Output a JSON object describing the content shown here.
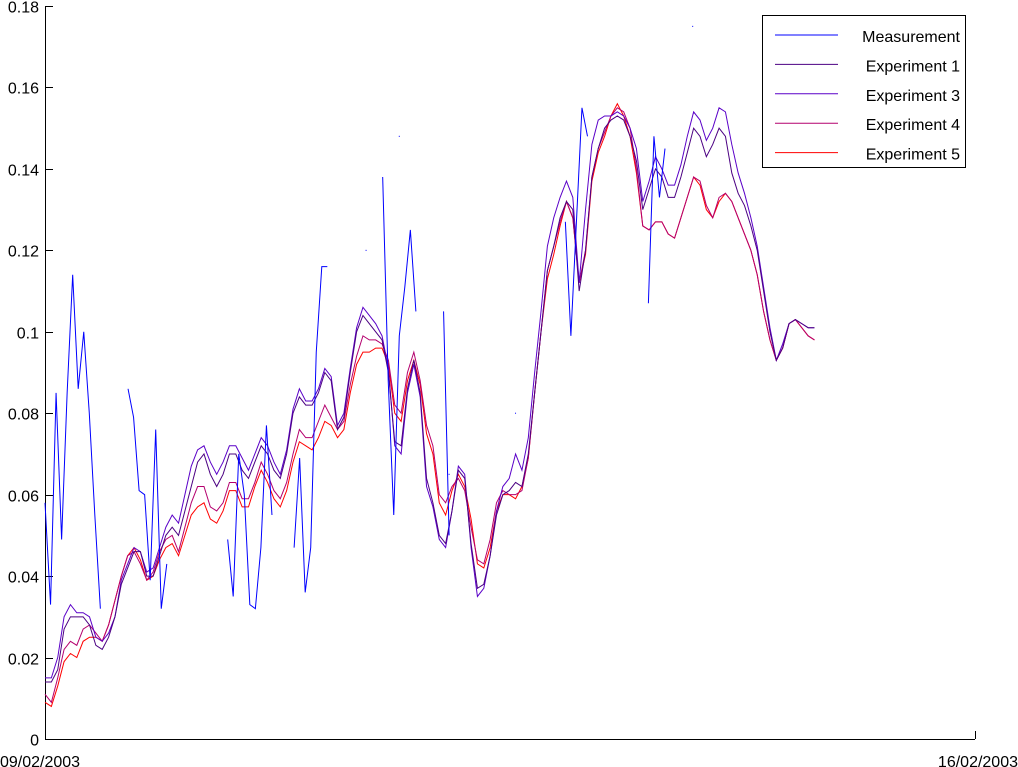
{
  "chart_data": {
    "type": "line",
    "title": "",
    "xlabel": "",
    "ylabel": "",
    "xlim": [
      "09/02/2003",
      "16/02/2003"
    ],
    "ylim": [
      0,
      0.18
    ],
    "y_ticks": [
      0,
      0.02,
      0.04,
      0.06,
      0.08,
      0.1,
      0.12,
      0.14,
      0.16,
      0.18
    ],
    "y_tick_labels": [
      "0",
      "0.02",
      "0.04",
      "0.06",
      "0.08",
      "0.1",
      "0.12",
      "0.14",
      "0.16",
      "0.18"
    ],
    "x_tick_labels": [
      "09/02/2003",
      "16/02/2003"
    ],
    "grid": false,
    "legend_position": "top-right",
    "series": [
      {
        "name": "Measurement",
        "color": "#0000ff",
        "points": [
          [
            "09/02/2003 00:00",
            0.058
          ],
          [
            "09/02/2003 01:00",
            0.033
          ],
          [
            "09/02/2003 02:00",
            0.085
          ],
          [
            "09/02/2003 03:00",
            0.049
          ],
          [
            "09/02/2003 04:00",
            0.085
          ],
          [
            "09/02/2003 05:00",
            0.114
          ],
          [
            "09/02/2003 06:00",
            0.086
          ],
          [
            "09/02/2003 07:00",
            0.1
          ],
          [
            "09/02/2003 08:00",
            0.08
          ],
          [
            "09/02/2003 09:00",
            0.055
          ],
          [
            "09/02/2003 10:00",
            0.032
          ],
          [
            "09/02/2003 11:00",
            null
          ],
          [
            "09/02/2003 12:00",
            null
          ],
          [
            "09/02/2003 13:00",
            null
          ],
          [
            "09/02/2003 14:00",
            null
          ],
          [
            "09/02/2003 15:00",
            0.086
          ],
          [
            "09/02/2003 16:00",
            0.079
          ],
          [
            "09/02/2003 17:00",
            0.061
          ],
          [
            "09/02/2003 18:00",
            0.06
          ],
          [
            "09/02/2003 19:00",
            0.039
          ],
          [
            "09/02/2003 20:00",
            0.076
          ],
          [
            "09/02/2003 21:00",
            0.032
          ],
          [
            "09/02/2003 22:00",
            0.043
          ],
          [
            "09/02/2003 23:00",
            null
          ],
          [
            "10/02/2003 00:00",
            null
          ],
          [
            "10/02/2003 01:00",
            null
          ],
          [
            "10/02/2003 02:00",
            null
          ],
          [
            "10/02/2003 03:00",
            null
          ],
          [
            "10/02/2003 04:00",
            null
          ],
          [
            "10/02/2003 05:00",
            null
          ],
          [
            "10/02/2003 06:00",
            null
          ],
          [
            "10/02/2003 07:00",
            null
          ],
          [
            "10/02/2003 08:00",
            null
          ],
          [
            "10/02/2003 09:00",
            0.049
          ],
          [
            "10/02/2003 10:00",
            0.035
          ],
          [
            "10/02/2003 11:00",
            0.07
          ],
          [
            "10/02/2003 12:00",
            0.06
          ],
          [
            "10/02/2003 13:00",
            0.033
          ],
          [
            "10/02/2003 14:00",
            0.032
          ],
          [
            "10/02/2003 15:00",
            0.047
          ],
          [
            "10/02/2003 16:00",
            0.077
          ],
          [
            "10/02/2003 17:00",
            0.055
          ],
          [
            "10/02/2003 18:00",
            null
          ],
          [
            "10/02/2003 19:00",
            null
          ],
          [
            "10/02/2003 20:00",
            null
          ],
          [
            "10/02/2003 21:00",
            0.047
          ],
          [
            "10/02/2003 22:00",
            0.069
          ],
          [
            "10/02/2003 23:00",
            0.036
          ],
          [
            "11/02/2003 00:00",
            0.047
          ],
          [
            "11/02/2003 01:00",
            0.095
          ],
          [
            "11/02/2003 02:00",
            0.116
          ],
          [
            "11/02/2003 03:00",
            0.116
          ],
          [
            "11/02/2003 04:00",
            null
          ],
          [
            "11/02/2003 05:00",
            null
          ],
          [
            "11/02/2003 06:00",
            null
          ],
          [
            "11/02/2003 07:00",
            null
          ],
          [
            "11/02/2003 08:00",
            null
          ],
          [
            "11/02/2003 09:00",
            null
          ],
          [
            "11/02/2003 10:00",
            null
          ],
          [
            "11/02/2003 11:00",
            null
          ],
          [
            "11/02/2003 12:00",
            null
          ],
          [
            "11/02/2003 13:00",
            0.138
          ],
          [
            "11/02/2003 14:00",
            0.088
          ],
          [
            "11/02/2003 15:00",
            0.055
          ],
          [
            "11/02/2003 16:00",
            0.099
          ],
          [
            "11/02/2003 17:00",
            0.111
          ],
          [
            "11/02/2003 18:00",
            0.125
          ],
          [
            "11/02/2003 19:00",
            0.105
          ],
          [
            "11/02/2003 20:00",
            null
          ],
          [
            "11/02/2003 21:00",
            null
          ],
          [
            "11/02/2003 22:00",
            null
          ],
          [
            "11/02/2003 23:00",
            null
          ],
          [
            "12/02/2003 00:00",
            0.105
          ],
          [
            "12/02/2003 01:00",
            0.05
          ],
          [
            "12/02/2003 02:00",
            null
          ],
          [
            "12/02/2003 03:00",
            null
          ],
          [
            "12/02/2003 04:00",
            null
          ],
          [
            "12/02/2003 05:00",
            null
          ],
          [
            "12/02/2003 06:00",
            null
          ],
          [
            "12/02/2003 07:00",
            null
          ],
          [
            "12/02/2003 08:00",
            null
          ],
          [
            "12/02/2003 09:00",
            null
          ],
          [
            "12/02/2003 10:00",
            null
          ],
          [
            "12/02/2003 11:00",
            null
          ],
          [
            "12/02/2003 12:00",
            null
          ],
          [
            "12/02/2003 13:00",
            null
          ],
          [
            "12/02/2003 14:00",
            null
          ],
          [
            "12/02/2003 15:00",
            null
          ],
          [
            "12/02/2003 16:00",
            null
          ],
          [
            "12/02/2003 17:00",
            null
          ],
          [
            "12/02/2003 18:00",
            null
          ],
          [
            "12/02/2003 19:00",
            null
          ],
          [
            "12/02/2003 20:00",
            null
          ],
          [
            "12/02/2003 21:00",
            null
          ],
          [
            "12/02/2003 22:00",
            0.127
          ],
          [
            "12/02/2003 23:00",
            0.099
          ],
          [
            "13/02/2003 00:00",
            0.127
          ],
          [
            "13/02/2003 01:00",
            0.155
          ],
          [
            "13/02/2003 02:00",
            0.148
          ],
          [
            "13/02/2003 03:00",
            null
          ],
          [
            "13/02/2003 04:00",
            null
          ],
          [
            "13/02/2003 05:00",
            null
          ],
          [
            "13/02/2003 06:00",
            null
          ],
          [
            "13/02/2003 07:00",
            null
          ],
          [
            "13/02/2003 08:00",
            null
          ],
          [
            "13/02/2003 09:00",
            null
          ],
          [
            "13/02/2003 10:00",
            null
          ],
          [
            "13/02/2003 11:00",
            null
          ],
          [
            "13/02/2003 12:00",
            null
          ],
          [
            "13/02/2003 13:00",
            0.107
          ],
          [
            "13/02/2003 14:00",
            0.148
          ],
          [
            "13/02/2003 15:00",
            0.133
          ],
          [
            "13/02/2003 16:00",
            0.145
          ]
        ]
      },
      {
        "name": "Experiment 1",
        "color": "#4b0082",
        "x_start": "09/02/2003 00:00",
        "x_end": "14/02/2003 19:00",
        "values": [
          0.014,
          0.014,
          0.017,
          0.027,
          0.03,
          0.03,
          0.03,
          0.028,
          0.023,
          0.022,
          0.025,
          0.03,
          0.038,
          0.042,
          0.046,
          0.046,
          0.04,
          0.04,
          0.045,
          0.05,
          0.052,
          0.05,
          0.056,
          0.062,
          0.068,
          0.07,
          0.065,
          0.062,
          0.065,
          0.07,
          0.07,
          0.066,
          0.064,
          0.068,
          0.072,
          0.07,
          0.066,
          0.064,
          0.07,
          0.08,
          0.084,
          0.082,
          0.082,
          0.085,
          0.09,
          0.088,
          0.076,
          0.079,
          0.09,
          0.1,
          0.104,
          0.102,
          0.1,
          0.098,
          0.09,
          0.073,
          0.072,
          0.086,
          0.093,
          0.085,
          0.064,
          0.058,
          0.05,
          0.048,
          0.056,
          0.066,
          0.064,
          0.048,
          0.037,
          0.038,
          0.045,
          0.055,
          0.06,
          0.061,
          0.063,
          0.062,
          0.07,
          0.085,
          0.1,
          0.115,
          0.121,
          0.128,
          0.132,
          0.13,
          0.11,
          0.12,
          0.138,
          0.145,
          0.15,
          0.152,
          0.153,
          0.152,
          0.148,
          0.142,
          0.13,
          0.135,
          0.14,
          0.138,
          0.133,
          0.133,
          0.138,
          0.144,
          0.15,
          0.148,
          0.143,
          0.146,
          0.15,
          0.148,
          0.139,
          0.134,
          0.131,
          0.126,
          0.12,
          0.11,
          0.1,
          0.093,
          0.096,
          0.102,
          0.103,
          0.102,
          0.101,
          0.101
        ]
      },
      {
        "name": "Experiment 3",
        "color": "#5a00c8",
        "x_start": "09/02/2003 00:00",
        "x_end": "14/02/2003 19:00",
        "values": [
          0.015,
          0.015,
          0.02,
          0.03,
          0.033,
          0.031,
          0.031,
          0.03,
          0.025,
          0.024,
          0.026,
          0.03,
          0.039,
          0.043,
          0.047,
          0.046,
          0.041,
          0.042,
          0.047,
          0.052,
          0.055,
          0.053,
          0.06,
          0.067,
          0.071,
          0.072,
          0.068,
          0.065,
          0.068,
          0.072,
          0.072,
          0.069,
          0.066,
          0.07,
          0.074,
          0.072,
          0.068,
          0.065,
          0.071,
          0.081,
          0.086,
          0.083,
          0.083,
          0.086,
          0.091,
          0.089,
          0.077,
          0.08,
          0.091,
          0.101,
          0.106,
          0.104,
          0.102,
          0.099,
          0.091,
          0.072,
          0.07,
          0.085,
          0.092,
          0.084,
          0.062,
          0.057,
          0.049,
          0.047,
          0.056,
          0.067,
          0.065,
          0.047,
          0.035,
          0.037,
          0.045,
          0.056,
          0.062,
          0.064,
          0.07,
          0.066,
          0.074,
          0.09,
          0.105,
          0.121,
          0.128,
          0.133,
          0.137,
          0.133,
          0.112,
          0.13,
          0.146,
          0.152,
          0.153,
          0.153,
          0.154,
          0.153,
          0.15,
          0.145,
          0.132,
          0.137,
          0.143,
          0.14,
          0.136,
          0.136,
          0.141,
          0.148,
          0.154,
          0.152,
          0.147,
          0.15,
          0.155,
          0.154,
          0.146,
          0.139,
          0.134,
          0.128,
          0.121,
          0.111,
          0.101,
          0.093,
          0.097,
          0.102,
          0.103,
          0.102,
          0.101,
          0.101
        ]
      },
      {
        "name": "Experiment 4",
        "color": "#b4006e",
        "x_start": "09/02/2003 00:00",
        "x_end": "14/02/2003 19:00",
        "values": [
          0.011,
          0.009,
          0.015,
          0.022,
          0.024,
          0.023,
          0.027,
          0.028,
          0.026,
          0.024,
          0.028,
          0.034,
          0.04,
          0.045,
          0.046,
          0.043,
          0.039,
          0.041,
          0.046,
          0.049,
          0.05,
          0.046,
          0.052,
          0.058,
          0.062,
          0.062,
          0.057,
          0.056,
          0.058,
          0.063,
          0.063,
          0.059,
          0.059,
          0.063,
          0.068,
          0.065,
          0.061,
          0.059,
          0.063,
          0.07,
          0.076,
          0.074,
          0.074,
          0.078,
          0.082,
          0.079,
          0.076,
          0.078,
          0.087,
          0.094,
          0.099,
          0.098,
          0.098,
          0.097,
          0.093,
          0.082,
          0.08,
          0.09,
          0.095,
          0.088,
          0.077,
          0.072,
          0.06,
          0.058,
          0.062,
          0.064,
          0.061,
          0.052,
          0.044,
          0.043,
          0.049,
          0.058,
          0.061,
          0.06,
          0.06,
          0.061,
          0.069,
          0.085,
          0.1,
          0.115,
          0.121,
          0.127,
          0.132,
          0.128,
          0.112,
          0.12,
          0.138,
          0.145,
          0.149,
          0.153,
          0.155,
          0.154,
          0.15,
          0.14,
          0.126,
          0.125,
          0.127,
          0.127,
          0.124,
          0.123,
          0.128,
          0.133,
          0.138,
          0.137,
          0.131,
          0.128,
          0.133,
          0.134,
          0.132,
          0.128,
          0.124,
          0.12,
          0.114,
          0.105,
          0.098,
          0.093,
          0.096,
          0.102,
          0.103,
          0.101,
          0.099,
          0.098
        ]
      },
      {
        "name": "Experiment 5",
        "color": "#ff0000",
        "x_start": "09/02/2003 00:00",
        "x_end": "14/02/2003 19:00",
        "values": [
          0.009,
          0.008,
          0.013,
          0.019,
          0.021,
          0.02,
          0.024,
          0.025,
          0.025,
          0.024,
          0.028,
          0.034,
          0.04,
          0.045,
          0.047,
          0.044,
          0.039,
          0.04,
          0.044,
          0.047,
          0.048,
          0.045,
          0.05,
          0.055,
          0.057,
          0.058,
          0.054,
          0.053,
          0.056,
          0.061,
          0.061,
          0.057,
          0.057,
          0.062,
          0.066,
          0.063,
          0.059,
          0.057,
          0.061,
          0.068,
          0.073,
          0.072,
          0.071,
          0.074,
          0.078,
          0.077,
          0.074,
          0.076,
          0.085,
          0.092,
          0.095,
          0.095,
          0.096,
          0.096,
          0.092,
          0.08,
          0.078,
          0.088,
          0.093,
          0.087,
          0.075,
          0.07,
          0.058,
          0.055,
          0.061,
          0.065,
          0.062,
          0.054,
          0.043,
          0.042,
          0.047,
          0.056,
          0.06,
          0.06,
          0.059,
          0.062,
          0.069,
          0.085,
          0.1,
          0.113,
          0.119,
          0.126,
          0.132,
          0.128,
          0.112,
          0.119,
          0.137,
          0.144,
          0.148,
          0.153,
          0.156,
          0.153,
          0.148,
          0.139,
          0.126,
          0.125,
          0.127,
          0.127,
          0.124,
          0.123,
          0.128,
          0.133,
          0.138,
          0.136,
          0.13,
          0.128,
          0.132,
          0.134,
          0.132,
          0.128,
          0.124,
          0.12,
          0.114,
          0.105,
          0.098,
          0.093,
          0.096,
          0.102,
          0.103,
          0.101,
          0.099,
          0.098
        ]
      }
    ],
    "stray_measurement_points": [
      [
        "11/02/2003 10:00",
        0.12
      ],
      [
        "11/02/2003 16:00",
        0.148
      ],
      [
        "12/02/2003 01:00",
        0.065
      ],
      [
        "12/02/2003 13:00",
        0.08
      ],
      [
        "13/02/2003 21:00",
        0.175
      ]
    ]
  }
}
